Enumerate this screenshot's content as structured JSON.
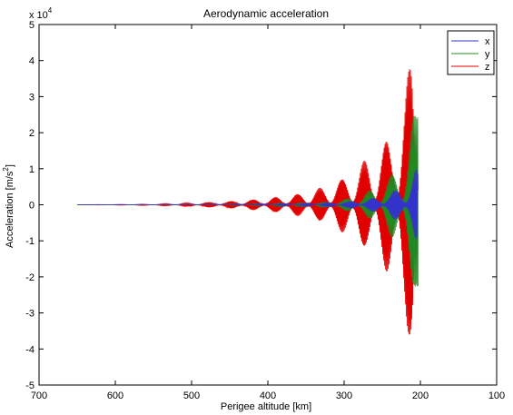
{
  "chart_data": {
    "type": "line",
    "title": "Aerodynamic acceleration",
    "xlabel": "Perigee altitude [km]",
    "ylabel_main": "Acceleration [m/s",
    "ylabel_sup": "2",
    "ylabel_end": "]",
    "y_exponent_base": "x 10",
    "y_exponent_power": "4",
    "xlim": [
      700,
      100
    ],
    "ylim": [
      -5,
      5
    ],
    "x_reversed": true,
    "y_scale": 0.0001,
    "xticks": [
      700,
      600,
      500,
      400,
      300,
      200,
      100
    ],
    "xtick_labels": [
      "700",
      "600",
      "500",
      "400",
      "300",
      "200",
      "100"
    ],
    "yticks": [
      5,
      4,
      3,
      2,
      1,
      0,
      -1,
      -2,
      -3,
      -4,
      -5
    ],
    "ytick_labels": [
      "5",
      "4",
      "3",
      "2",
      "1",
      "0",
      "-1",
      "-2",
      "-3",
      "-4",
      "-5"
    ],
    "legend_position": "top-right",
    "series": [
      {
        "name": "x",
        "color": "#3333cc",
        "x": [
          650,
          500,
          400,
          320,
          280,
          250,
          230,
          220,
          215,
          212,
          210,
          208,
          205,
          203
        ],
        "envelope": [
          0.0,
          0.0,
          0.02,
          0.05,
          0.12,
          0.25,
          0.45,
          0.6,
          0.7,
          0.8,
          0.9,
          1.0,
          1.0,
          0.9
        ]
      },
      {
        "name": "y",
        "color": "#228822",
        "x": [
          650,
          500,
          400,
          320,
          280,
          250,
          230,
          220,
          215,
          212,
          210,
          208,
          205,
          203
        ],
        "envelope": [
          0.0,
          0.0,
          0.03,
          0.08,
          0.25,
          0.6,
          1.1,
          1.5,
          1.9,
          2.2,
          2.4,
          2.5,
          2.9,
          3.8
        ]
      },
      {
        "name": "z",
        "color": "#e00000",
        "x": [
          650,
          550,
          500,
          450,
          400,
          350,
          320,
          300,
          280,
          260,
          250,
          240,
          230,
          220,
          215,
          212,
          210,
          208,
          205
        ],
        "envelope": [
          0.0,
          0.02,
          0.05,
          0.1,
          0.18,
          0.35,
          0.55,
          0.8,
          1.1,
          1.5,
          1.7,
          2.0,
          2.5,
          3.2,
          3.8,
          4.3,
          4.5,
          3.8,
          1.5
        ]
      }
    ]
  }
}
